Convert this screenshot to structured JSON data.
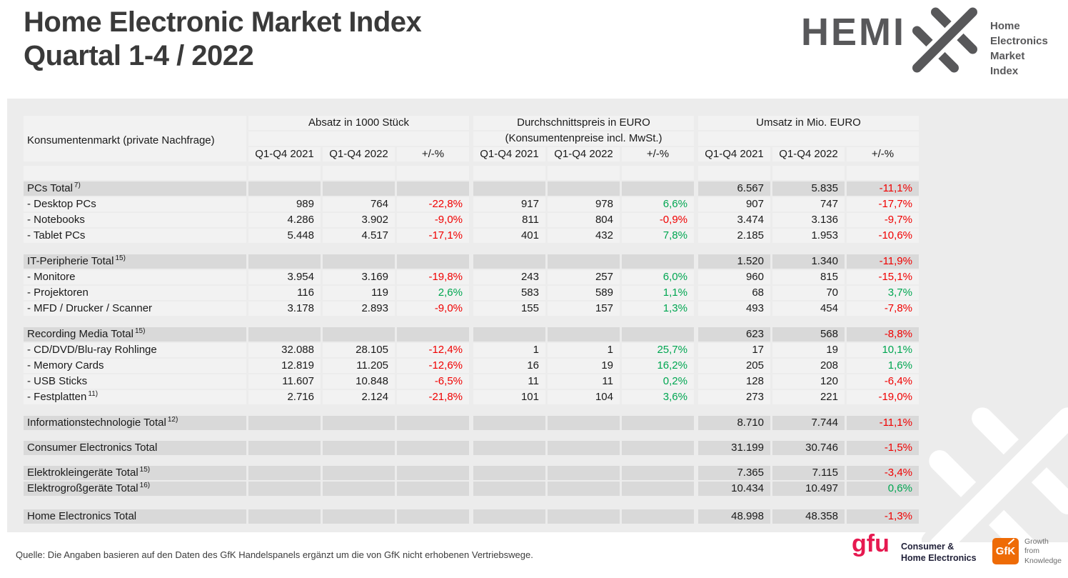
{
  "page": {
    "title_line1": "Home Electronic Market Index",
    "title_line2": "Quartal 1-4 / 2022",
    "source": "Quelle: Die Angaben basieren auf den Daten des GfK Handelspanels ergänzt um die von GfK nicht erhobenen Vertriebswege."
  },
  "hemix_logo": {
    "wordmark": "HEMI",
    "tagline_lines": [
      "Home",
      "Electronics",
      "Market Index"
    ],
    "color": "#58585a"
  },
  "table": {
    "label_header": "Konsumentenmarkt (private Nachfrage)",
    "groups": [
      {
        "title": "Absatz in 1000 Stück",
        "subtitle": ""
      },
      {
        "title": "Durchschnittspreis in EURO",
        "subtitle": "(Konsumentenpreise incl. MwSt.)"
      },
      {
        "title": "Umsatz in Mio. EURO",
        "subtitle": ""
      }
    ],
    "sub_headers": [
      "Q1-Q4 2021",
      "Q1-Q4 2022",
      "+/-%",
      "Q1-Q4 2021",
      "Q1-Q4 2022",
      "+/-%",
      "Q1-Q4 2021",
      "Q1-Q4 2022",
      "+/-%"
    ],
    "colors": {
      "negative": "#f00000",
      "positive": "#00a651",
      "row_bg": "#f2f2f2",
      "total_bg": "#d9d9d9",
      "panel_bg": "#ececec"
    },
    "rows": [
      {
        "type": "item",
        "label": "",
        "cells": [
          "",
          "",
          "",
          "",
          "",
          "",
          "",
          "",
          ""
        ]
      },
      {
        "type": "total",
        "label": "PCs Total",
        "sup": "7)",
        "cells": [
          "",
          "",
          "",
          "",
          "",
          "",
          "6.567",
          "5.835",
          "-11,1%"
        ]
      },
      {
        "type": "item",
        "label": "- Desktop PCs",
        "cells": [
          "989",
          "764",
          "-22,8%",
          "917",
          "978",
          "6,6%",
          "907",
          "747",
          "-17,7%"
        ]
      },
      {
        "type": "item",
        "label": "- Notebooks",
        "cells": [
          "4.286",
          "3.902",
          "-9,0%",
          "811",
          "804",
          "-0,9%",
          "3.474",
          "3.136",
          "-9,7%"
        ]
      },
      {
        "type": "item",
        "label": "- Tablet PCs",
        "cells": [
          "5.448",
          "4.517",
          "-17,1%",
          "401",
          "432",
          "7,8%",
          "2.185",
          "1.953",
          "-10,6%"
        ]
      },
      {
        "type": "spacer",
        "h": 14
      },
      {
        "type": "total",
        "label": "IT-Peripherie Total",
        "sup": "15)",
        "cells": [
          "",
          "",
          "",
          "",
          "",
          "",
          "1.520",
          "1.340",
          "-11,9%"
        ]
      },
      {
        "type": "item",
        "label": "- Monitore",
        "cells": [
          "3.954",
          "3.169",
          "-19,8%",
          "243",
          "257",
          "6,0%",
          "960",
          "815",
          "-15,1%"
        ]
      },
      {
        "type": "item",
        "label": "- Projektoren",
        "cells": [
          "116",
          "119",
          "2,6%",
          "583",
          "589",
          "1,1%",
          "68",
          "70",
          "3,7%"
        ]
      },
      {
        "type": "item",
        "label": "- MFD / Drucker / Scanner",
        "cells": [
          "3.178",
          "2.893",
          "-9,0%",
          "155",
          "157",
          "1,3%",
          "493",
          "454",
          "-7,8%"
        ]
      },
      {
        "type": "spacer",
        "h": 14
      },
      {
        "type": "total",
        "label": "Recording Media Total",
        "sup": "15)",
        "cells": [
          "",
          "",
          "",
          "",
          "",
          "",
          "623",
          "568",
          "-8,8%"
        ]
      },
      {
        "type": "item",
        "label": "- CD/DVD/Blu-ray Rohlinge",
        "cells": [
          "32.088",
          "28.105",
          "-12,4%",
          "1",
          "1",
          "25,7%",
          "17",
          "19",
          "10,1%"
        ]
      },
      {
        "type": "item",
        "label": "- Memory Cards",
        "cells": [
          "12.819",
          "11.205",
          "-12,6%",
          "16",
          "19",
          "16,2%",
          "205",
          "208",
          "1,6%"
        ]
      },
      {
        "type": "item",
        "label": "- USB Sticks",
        "cells": [
          "11.607",
          "10.848",
          "-6,5%",
          "11",
          "11",
          "0,2%",
          "128",
          "120",
          "-6,4%"
        ]
      },
      {
        "type": "item",
        "label": "- Festplatten",
        "sup": "11)",
        "cells": [
          "2.716",
          "2.124",
          "-21,8%",
          "101",
          "104",
          "3,6%",
          "273",
          "221",
          "-19,0%"
        ]
      },
      {
        "type": "spacer",
        "h": 14
      },
      {
        "type": "total",
        "label": "Informationstechnologie Total",
        "sup": "12)",
        "cells": [
          "",
          "",
          "",
          "",
          "",
          "",
          "8.710",
          "7.744",
          "-11,1%"
        ]
      },
      {
        "type": "spacer",
        "h": 13
      },
      {
        "type": "total",
        "label": "Consumer Electronics Total",
        "cells": [
          "",
          "",
          "",
          "",
          "",
          "",
          "31.199",
          "30.746",
          "-1,5%"
        ]
      },
      {
        "type": "spacer",
        "h": 13
      },
      {
        "type": "total",
        "label": "Elektrokleingeräte Total",
        "sup": "15)",
        "cells": [
          "",
          "",
          "",
          "",
          "",
          "",
          "7.365",
          "7.115",
          "-3,4%"
        ]
      },
      {
        "type": "total",
        "label": "Elektrogroßgeräte Total",
        "sup": "16)",
        "cells": [
          "",
          "",
          "",
          "",
          "",
          "",
          "10.434",
          "10.497",
          "0,6%"
        ]
      },
      {
        "type": "spacer",
        "h": 17
      },
      {
        "type": "total",
        "label": "Home Electronics Total",
        "cells": [
          "",
          "",
          "",
          "",
          "",
          "",
          "48.998",
          "48.358",
          "-1,3%"
        ]
      }
    ]
  },
  "footer": {
    "gfu": {
      "wordmark": "gfu",
      "label_lines": [
        "Consumer &",
        "Home Electronics"
      ],
      "color": "#e61950"
    },
    "gfk": {
      "wordmark": "GfK",
      "label_lines": [
        "Growth",
        "from",
        "Knowledge"
      ],
      "color": "#ee6b06"
    }
  }
}
